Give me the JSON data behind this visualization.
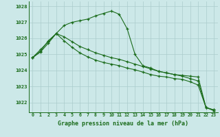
{
  "x": [
    0,
    1,
    2,
    3,
    4,
    5,
    6,
    7,
    8,
    9,
    10,
    11,
    12,
    13,
    14,
    15,
    16,
    17,
    18,
    19,
    20,
    21,
    22,
    23
  ],
  "line1": [
    1024.8,
    1025.3,
    1025.8,
    1026.3,
    1026.8,
    1027.0,
    1027.1,
    1027.2,
    1027.4,
    1027.55,
    1027.7,
    1027.5,
    1026.6,
    1025.0,
    1024.3,
    1024.15,
    1023.95,
    1023.85,
    1023.75,
    1023.7,
    1023.65,
    1023.6,
    1021.7,
    1021.55
  ],
  "line2": [
    1024.8,
    1025.2,
    1025.85,
    1026.3,
    1026.1,
    1025.8,
    1025.5,
    1025.3,
    1025.1,
    1024.95,
    1024.8,
    1024.7,
    1024.55,
    1024.4,
    1024.25,
    1024.1,
    1023.95,
    1023.85,
    1023.75,
    1023.65,
    1023.5,
    1023.35,
    1021.7,
    1021.55
  ],
  "line3": [
    1024.8,
    1025.15,
    1025.7,
    1026.3,
    1025.85,
    1025.45,
    1025.1,
    1024.85,
    1024.65,
    1024.5,
    1024.4,
    1024.3,
    1024.15,
    1024.05,
    1023.9,
    1023.75,
    1023.65,
    1023.6,
    1023.5,
    1023.45,
    1023.3,
    1023.1,
    1021.7,
    1021.5
  ],
  "bg_color": "#cce8e8",
  "grid_color": "#aacccc",
  "line_color": "#1a6b1a",
  "xlabel": "Graphe pression niveau de la mer (hPa)",
  "ylim_min": 1021.4,
  "ylim_max": 1028.3,
  "yticks": [
    1022,
    1023,
    1024,
    1025,
    1026,
    1027,
    1028
  ],
  "xticks": [
    0,
    1,
    2,
    3,
    4,
    5,
    6,
    7,
    8,
    9,
    10,
    11,
    12,
    13,
    14,
    15,
    16,
    17,
    18,
    19,
    20,
    21,
    22,
    23
  ]
}
